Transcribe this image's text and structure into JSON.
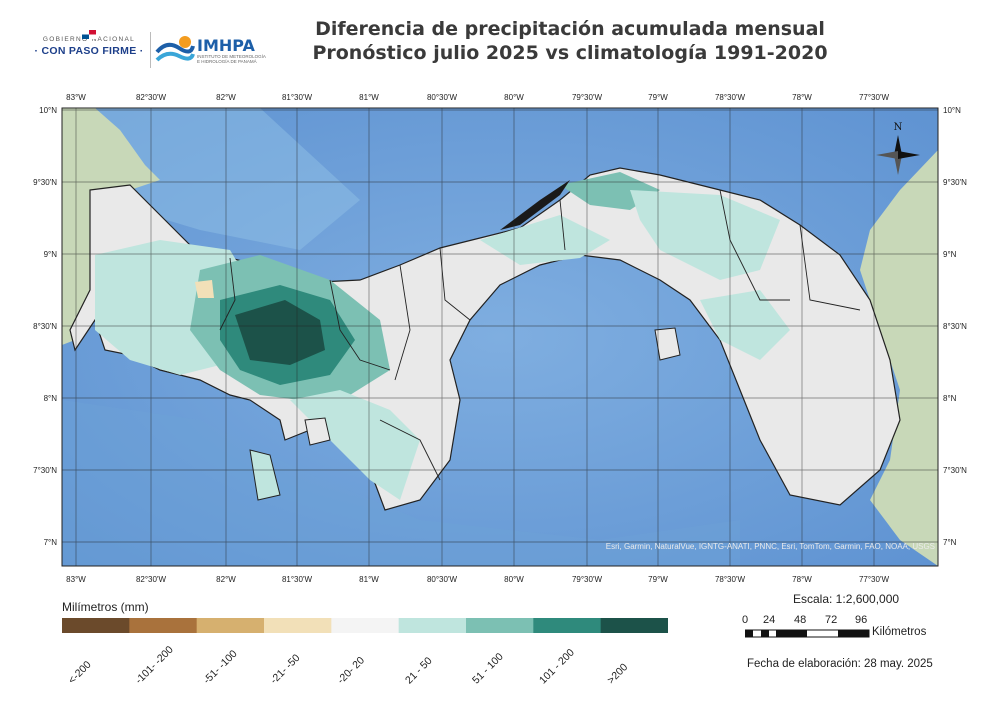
{
  "title": {
    "line1": "Diferencia de precipitación acumulada mensual",
    "line2": "Pronóstico julio 2025 vs climatología 1991-2020"
  },
  "logos": {
    "gobierno_top": "GOBIERNO NACIONAL",
    "gobierno_main": "· CON PASO FIRME ·",
    "imhpa": "IMHPA",
    "imhpa_sub": "INSTITUTO DE METEOROLOGÍA E HIDROLOGÍA DE PANAMÁ"
  },
  "map": {
    "lon_ticks": [
      "83°W",
      "82°30'W",
      "82°W",
      "81°30'W",
      "81°W",
      "80°30'W",
      "80°W",
      "79°30'W",
      "79°W",
      "78°30'W",
      "78°W",
      "77°30'W"
    ],
    "lat_ticks": [
      "10°N",
      "9°30'N",
      "9°N",
      "8°30'N",
      "8°N",
      "7°30'N",
      "7°N"
    ],
    "attribution": "Esri, Garmin, NaturalVue, IGNTG-ANATI, PNNC, Esri, TomTom, Garmin, FAO, NOAA, USGS",
    "north_label": "N"
  },
  "legend": {
    "title": "Milímetros (mm)",
    "classes": [
      {
        "label": "<-200",
        "color": "#6b4a2b"
      },
      {
        "label": "-101- -200",
        "color": "#a9723c"
      },
      {
        "label": "-51- -100",
        "color": "#d6b06f"
      },
      {
        "label": "-21- -50",
        "color": "#f2e0b8"
      },
      {
        "label": "-20- 20",
        "color": "#f4f4f4"
      },
      {
        "label": "21 - 50",
        "color": "#bfe5de"
      },
      {
        "label": "51 - 100",
        "color": "#7cc0b3"
      },
      {
        "label": "101 - 200",
        "color": "#2f8a7c"
      },
      {
        "label": ">200",
        "color": "#1c5249"
      }
    ]
  },
  "scale": {
    "label": "Escala: 1:2,600,000",
    "ticks": [
      "0",
      "24",
      "48",
      "72",
      "96"
    ],
    "unit": "Kilómetros"
  },
  "fecha": "Fecha de elaboración: 28 may. 2025"
}
